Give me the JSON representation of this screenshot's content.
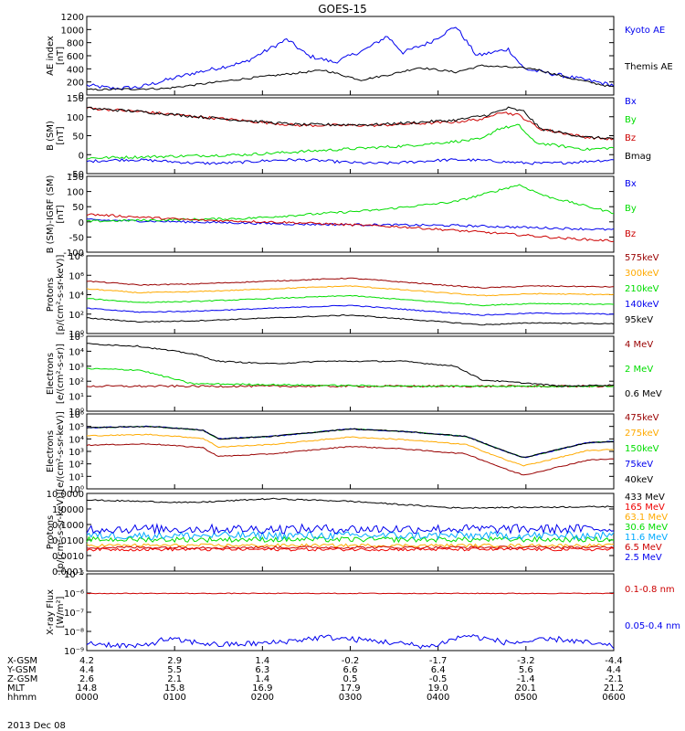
{
  "title": "GOES-15",
  "date_label": "2013 Dec 08",
  "colors": {
    "black": "#000000",
    "blue": "#0000ee",
    "green": "#00dd00",
    "red": "#cc0000",
    "darkred": "#990000",
    "orange": "#ffaa00",
    "cyan": "#00aaff",
    "yellow": "#dddd00",
    "midblue": "#0066ff",
    "brightred": "#ee0000"
  },
  "time_axis": {
    "ticks": [
      "0000",
      "0100",
      "0200",
      "0300",
      "0400",
      "0500",
      "0600"
    ],
    "row_labels": [
      "X-GSM",
      "Y-GSM",
      "Z-GSM",
      "MLT",
      "hhmm"
    ],
    "rows": [
      [
        "4.2",
        "2.9",
        "1.4",
        "-0.2",
        "-1.7",
        "-3.2",
        "-4.4"
      ],
      [
        "4.4",
        "5.5",
        "6.3",
        "6.6",
        "6.4",
        "5.6",
        "4.4"
      ],
      [
        "2.6",
        "2.1",
        "1.4",
        "0.5",
        "-0.5",
        "-1.4",
        "-2.1"
      ],
      [
        "14.8",
        "15.8",
        "16.9",
        "17.9",
        "19.0",
        "20.1",
        "21.2"
      ],
      [
        "0000",
        "0100",
        "0200",
        "0300",
        "0400",
        "0500",
        "0600"
      ]
    ]
  },
  "chart_data": [
    {
      "type": "line",
      "ylabel": "AE index\n[nT]",
      "yscale": "linear",
      "ylim": [
        0,
        1200
      ],
      "yticks": [
        "0",
        "200",
        "400",
        "600",
        "800",
        "1000",
        "1200"
      ],
      "series": [
        {
          "name": "Kyoto AE",
          "color": "blue",
          "shape": "ae_kyoto",
          "base": 0,
          "amp": 1,
          "noise": 30
        },
        {
          "name": "Themis AE",
          "color": "black",
          "shape": "ae_themis",
          "base": 0,
          "amp": 1,
          "noise": 15
        }
      ]
    },
    {
      "type": "line",
      "ylabel": "B (SM)\n[nT]",
      "yscale": "linear",
      "ylim": [
        -60,
        160
      ],
      "yticks": [
        "-50",
        "0",
        "50",
        "100",
        "150"
      ],
      "series": [
        {
          "name": "Bx",
          "color": "blue",
          "shape": "flat_m25",
          "noise": 4
        },
        {
          "name": "By",
          "color": "green",
          "shape": "by1",
          "noise": 4
        },
        {
          "name": "Bz",
          "color": "red",
          "shape": "bz1",
          "noise": 4
        },
        {
          "name": "Bmag",
          "color": "black",
          "shape": "bmag",
          "noise": 4
        }
      ]
    },
    {
      "type": "line",
      "ylabel": "B (SM)-IGRF (SM)\n[nT]",
      "yscale": "linear",
      "ylim": [
        -110,
        160
      ],
      "yticks": [
        "-100",
        "-50",
        "0",
        "50",
        "100",
        "150"
      ],
      "series": [
        {
          "name": "Bx",
          "color": "blue",
          "shape": "dbx",
          "noise": 4
        },
        {
          "name": "By",
          "color": "green",
          "shape": "dby",
          "noise": 4
        },
        {
          "name": "Bz",
          "color": "red",
          "shape": "dbz",
          "noise": 4
        }
      ]
    },
    {
      "type": "line",
      "ylabel": "Protons\n[p/(cm²-s-sr-keV)]",
      "yscale": "log",
      "ylim": [
        0,
        8
      ],
      "yticks": [
        "10⁰",
        "10²",
        "10⁴",
        "10⁶",
        "10⁸"
      ],
      "series": [
        {
          "name": "575keV",
          "color": "darkred",
          "shape": "p_lo",
          "offset": 5.4,
          "noise": 0.05
        },
        {
          "name": "300keV",
          "color": "orange",
          "shape": "p_lo",
          "offset": 4.6,
          "noise": 0.05
        },
        {
          "name": "210keV",
          "color": "green",
          "shape": "p_lo",
          "offset": 3.6,
          "noise": 0.05
        },
        {
          "name": "140keV",
          "color": "blue",
          "shape": "p_lo",
          "offset": 2.6,
          "noise": 0.05
        },
        {
          "name": "95keV",
          "color": "black",
          "shape": "p_lo",
          "offset": 1.6,
          "noise": 0.05
        }
      ]
    },
    {
      "type": "line",
      "ylabel": "Electrons\n[e/(cm²-s-sr)]",
      "yscale": "log",
      "ylim": [
        -1,
        5
      ],
      "yticks": [
        "10⁰",
        "10¹",
        "10²",
        "10³",
        "10⁴",
        "10⁵"
      ],
      "series": [
        {
          "name": "4 MeV",
          "color": "darkred",
          "shape": "flat_1",
          "noise": 0.08
        },
        {
          "name": "2 MeV",
          "color": "green",
          "shape": "e2mev",
          "noise": 0.06
        },
        {
          "name": "0.6 MeV",
          "color": "black",
          "shape": "e06",
          "noise": 0.05
        }
      ]
    },
    {
      "type": "line",
      "ylabel": "Electrons\n[e/(cm²-s-sr-keV)]",
      "yscale": "log",
      "ylim": [
        0,
        6
      ],
      "yticks": [
        "10⁰",
        "10¹",
        "10²",
        "10³",
        "10⁴",
        "10⁵",
        "10⁶"
      ],
      "series": [
        {
          "name": "475keV",
          "color": "darkred",
          "shape": "e_lo",
          "offset": 0,
          "noise": 0.04
        },
        {
          "name": "275keV",
          "color": "orange",
          "shape": "e_lo",
          "offset": 0.75,
          "noise": 0.04
        },
        {
          "name": "150keV",
          "color": "green",
          "shape": "e_lo",
          "offset": 1.4,
          "noise": 0.04
        },
        {
          "name": "75keV",
          "color": "blue",
          "shape": "e_lo",
          "offset": 1.4,
          "noise": 0.04
        },
        {
          "name": "40keV",
          "color": "black",
          "shape": "e_lo",
          "offset": 1.4,
          "noise": 0.04
        }
      ]
    },
    {
      "type": "line",
      "ylabel": "Protons\n[p/(cm²-s-sr-keV)]",
      "yscale": "log",
      "ylim": [
        -4.2,
        1.7
      ],
      "yticks": [
        "0.0001",
        "0.0010",
        "0.0100",
        "0.1000",
        "1.0000",
        "10.0000"
      ],
      "series": [
        {
          "name": "433 MeV",
          "color": "black",
          "shape": "hp_433",
          "noise": 0.05
        },
        {
          "name": "165 MeV",
          "color": "brightred",
          "shape": "hp_flat",
          "level": -2.55,
          "noise": 0.12
        },
        {
          "name": "63.1 MeV",
          "color": "orange",
          "shape": "hp_flat",
          "level": -2.25,
          "noise": 0.12
        },
        {
          "name": "30.6 MeV",
          "color": "green",
          "shape": "hp_flat",
          "level": -1.8,
          "noise": 0.2
        },
        {
          "name": "11.6 MeV",
          "color": "cyan",
          "shape": "hp_flat",
          "level": -1.5,
          "noise": 0.3
        },
        {
          "name": "6.5 MeV",
          "color": "red",
          "shape": "hp_flat",
          "level": -2.4,
          "noise": 0.1
        },
        {
          "name": "2.5 MeV",
          "color": "blue",
          "shape": "hp_flat",
          "level": -1.0,
          "noise": 0.35
        }
      ]
    },
    {
      "type": "line",
      "ylabel": "X-ray Flux\n[W/m²]",
      "yscale": "log",
      "ylim": [
        -9,
        -5
      ],
      "yticks": [
        "10⁻⁹",
        "10⁻⁸",
        "10⁻⁷",
        "10⁻⁶",
        "10⁻⁵"
      ],
      "series": [
        {
          "name": "0.1-0.8 nm",
          "color": "red",
          "shape": "flat_m6",
          "noise": 0.02
        },
        {
          "name": "0.05-0.4 nm",
          "color": "blue",
          "shape": "xray_lo",
          "noise": 0.15
        }
      ]
    }
  ]
}
